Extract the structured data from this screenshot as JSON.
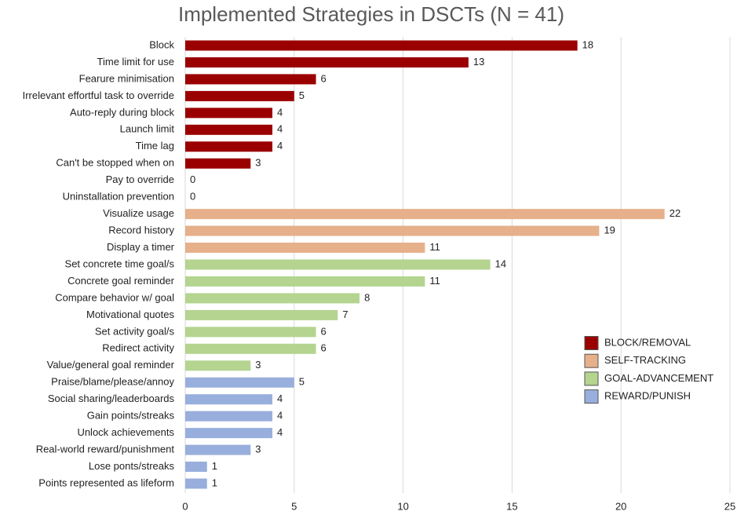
{
  "chart_data": {
    "type": "hbar",
    "title": "Implemented Strategies in DSCTs (N = 41)",
    "categories": [
      "Block",
      "Time limit for use",
      "Fearure minimisation",
      "Irrelevant effortful task to override",
      "Auto-reply during block",
      "Launch limit",
      "Time lag",
      "Can't be stopped when on",
      "Pay to override",
      "Uninstallation prevention",
      "Visualize usage",
      "Record history",
      "Display a timer",
      "Set concrete time goal/s",
      "Concrete goal reminder",
      "Compare behavior w/ goal",
      "Motivational quotes",
      "Set activity goal/s",
      "Redirect activity",
      "Value/general goal reminder",
      "Praise/blame/please/annoy",
      "Social sharing/leaderboards",
      "Gain points/streaks",
      "Unlock achievements",
      "Real-world reward/punishment",
      "Lose ponts/streaks",
      "Points represented as lifeform"
    ],
    "series": [
      {
        "name": "BLOCK/REMOVAL",
        "color": "#9b0000",
        "values": [
          18,
          13,
          6,
          5,
          4,
          4,
          4,
          3,
          0,
          0,
          null,
          null,
          null,
          null,
          null,
          null,
          null,
          null,
          null,
          null,
          null,
          null,
          null,
          null,
          null,
          null,
          null
        ]
      },
      {
        "name": "SELF-TRACKING",
        "color": "#e6b08a",
        "values": [
          null,
          null,
          null,
          null,
          null,
          null,
          null,
          null,
          null,
          null,
          22,
          19,
          11,
          null,
          null,
          null,
          null,
          null,
          null,
          null,
          null,
          null,
          null,
          null,
          null,
          null,
          null
        ]
      },
      {
        "name": "GOAL-ADVANCEMENT",
        "color": "#b4d490",
        "values": [
          null,
          null,
          null,
          null,
          null,
          null,
          null,
          null,
          null,
          null,
          null,
          null,
          null,
          14,
          11,
          8,
          7,
          6,
          6,
          3,
          null,
          null,
          null,
          null,
          null,
          null,
          null
        ]
      },
      {
        "name": "REWARD/PUNISH",
        "color": "#98aedc",
        "values": [
          null,
          null,
          null,
          null,
          null,
          null,
          null,
          null,
          null,
          null,
          null,
          null,
          null,
          null,
          null,
          null,
          null,
          null,
          null,
          null,
          5,
          4,
          4,
          4,
          3,
          1,
          1
        ]
      }
    ],
    "xlim": [
      0,
      25
    ],
    "xticks": [
      0,
      5,
      10,
      15,
      20,
      25
    ],
    "grid": true,
    "legend": "right"
  }
}
